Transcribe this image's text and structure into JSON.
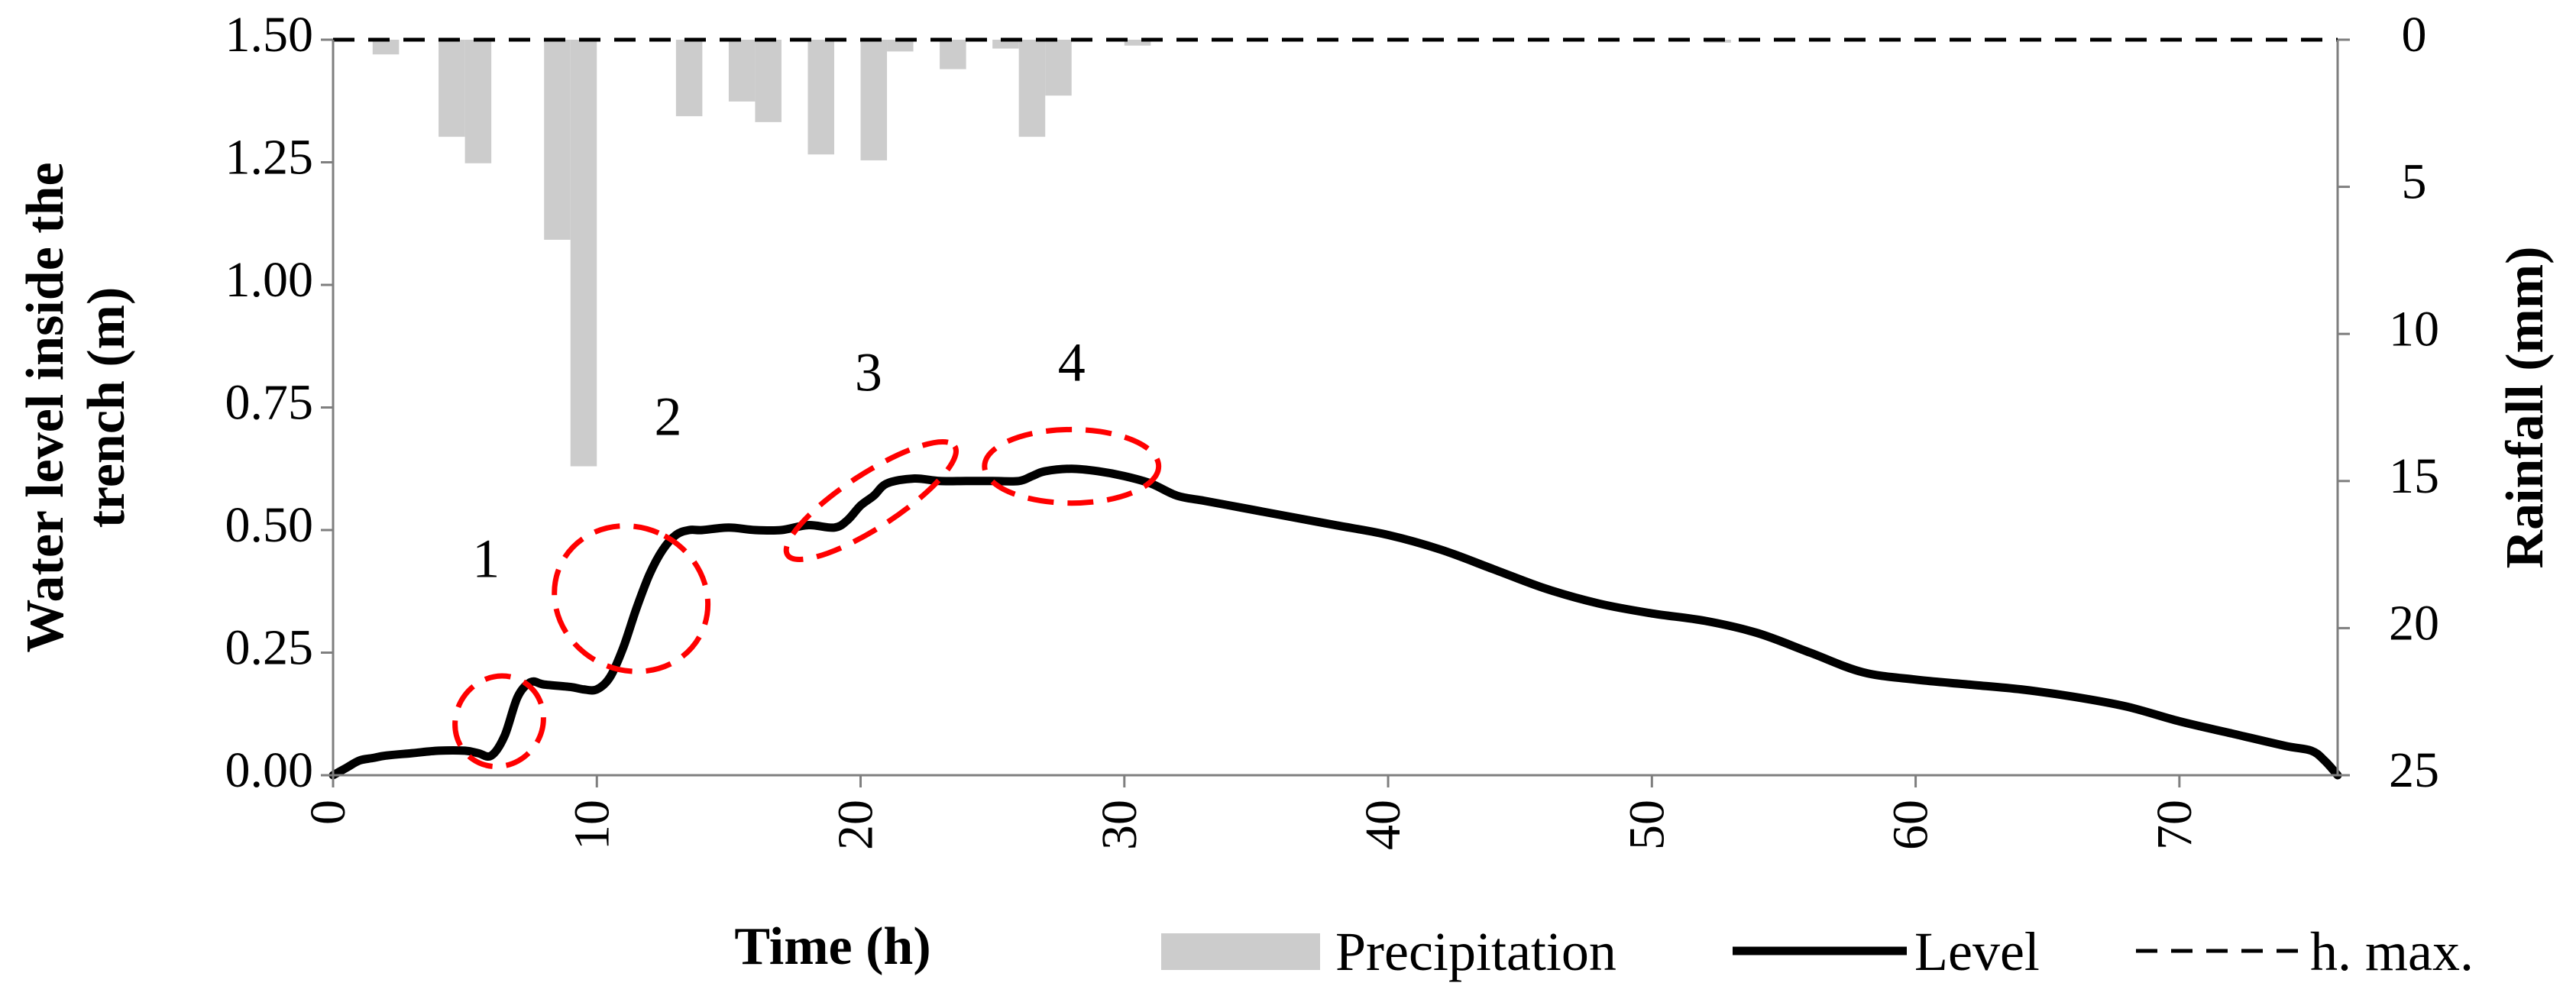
{
  "chart_data": {
    "type": "line",
    "xlabel": "Time (h)",
    "ylabel": "Water level inside the trench (m)",
    "y2label": "Rainfall (mm)",
    "xlim": [
      0,
      76
    ],
    "ylim": [
      0,
      1.5
    ],
    "y2lim": [
      0,
      25
    ],
    "y2_inverted": true,
    "x_ticks": [
      "0",
      "10",
      "20",
      "30",
      "40",
      "50",
      "60",
      "70"
    ],
    "y_ticks": [
      "0.00",
      "0.25",
      "0.50",
      "0.75",
      "1.00",
      "1.25",
      "1.50"
    ],
    "y2_ticks": [
      "0",
      "5",
      "10",
      "15",
      "20",
      "25"
    ],
    "grid": false,
    "legend_position": "bottom",
    "legend": {
      "precipitation": "Precipitation",
      "level": "Level",
      "hmax": "h. max."
    },
    "colors": {
      "precipitation": "#cccccc",
      "level": "#000000",
      "hmax": "#000000",
      "annotation": "#ff0000"
    },
    "series": [
      {
        "name": "Precipitation",
        "type": "bar",
        "axis": "right",
        "bars": [
          {
            "x": 2,
            "value": 0.5
          },
          {
            "x": 4.5,
            "value": 3.3
          },
          {
            "x": 5.5,
            "value": 4.2
          },
          {
            "x": 8.5,
            "value": 6.8
          },
          {
            "x": 9.5,
            "value": 14.5
          },
          {
            "x": 13.5,
            "value": 2.6
          },
          {
            "x": 15.5,
            "value": 2.1
          },
          {
            "x": 16.5,
            "value": 2.8
          },
          {
            "x": 18.5,
            "value": 3.9
          },
          {
            "x": 20.5,
            "value": 4.1
          },
          {
            "x": 21.5,
            "value": 0.4
          },
          {
            "x": 23.5,
            "value": 1.0
          },
          {
            "x": 25.5,
            "value": 0.3
          },
          {
            "x": 26.5,
            "value": 3.3
          },
          {
            "x": 27.5,
            "value": 1.9
          },
          {
            "x": 30.5,
            "value": 0.2
          },
          {
            "x": 52.5,
            "value": 0.1
          }
        ]
      },
      {
        "name": "Level",
        "type": "line",
        "axis": "left",
        "x": [
          0,
          0.5,
          1,
          1.5,
          2,
          3,
          4,
          5,
          5.5,
          6,
          6.5,
          7,
          7.5,
          8,
          9,
          9.5,
          10,
          10.5,
          11,
          11.5,
          12,
          12.5,
          13,
          13.5,
          14,
          15,
          16,
          17,
          18,
          19,
          19.5,
          20,
          20.5,
          21,
          22,
          23,
          24,
          25,
          26,
          26.5,
          27,
          28,
          29,
          30,
          31,
          32,
          33,
          34,
          35,
          36,
          38,
          40,
          42,
          44,
          46,
          48,
          50,
          52,
          54,
          56,
          58,
          60,
          62,
          64,
          66,
          68,
          70,
          72,
          74,
          75,
          75.5,
          76
        ],
        "values": [
          0.0,
          0.015,
          0.03,
          0.035,
          0.04,
          0.045,
          0.05,
          0.05,
          0.045,
          0.04,
          0.08,
          0.16,
          0.19,
          0.185,
          0.18,
          0.175,
          0.175,
          0.2,
          0.26,
          0.34,
          0.41,
          0.46,
          0.49,
          0.5,
          0.5,
          0.505,
          0.5,
          0.5,
          0.51,
          0.505,
          0.52,
          0.55,
          0.57,
          0.595,
          0.605,
          0.6,
          0.6,
          0.6,
          0.6,
          0.61,
          0.62,
          0.625,
          0.62,
          0.61,
          0.595,
          0.57,
          0.56,
          0.55,
          0.54,
          0.53,
          0.51,
          0.49,
          0.46,
          0.42,
          0.38,
          0.35,
          0.33,
          0.315,
          0.29,
          0.25,
          0.21,
          0.195,
          0.185,
          0.175,
          0.16,
          0.14,
          0.11,
          0.085,
          0.06,
          0.05,
          0.03,
          0.0
        ]
      },
      {
        "name": "h. max.",
        "type": "line",
        "axis": "left",
        "style": "dashed",
        "x": [
          0,
          76
        ],
        "values": [
          1.5,
          1.5
        ]
      }
    ],
    "annotations": [
      {
        "text": "1",
        "x": 5.8,
        "y": 0.43,
        "ellipse_cx": 6.3,
        "ellipse_cy": 0.11,
        "ellipse_rx": 1.3,
        "ellipse_ry": 0.16,
        "ellipse_angle": -55
      },
      {
        "text": "2",
        "x": 12.7,
        "y": 0.72,
        "ellipse_cx": 11.3,
        "ellipse_cy": 0.36,
        "ellipse_rx": 2.0,
        "ellipse_ry": 0.29,
        "ellipse_angle": -62
      },
      {
        "text": "3",
        "x": 20.3,
        "y": 0.81,
        "ellipse_cx": 20.4,
        "ellipse_cy": 0.56,
        "ellipse_rx": 2.8,
        "ellipse_ry": 0.1,
        "ellipse_angle": -33
      },
      {
        "text": "4",
        "x": 28.0,
        "y": 0.83,
        "ellipse_cx": 28.0,
        "ellipse_cy": 0.63,
        "ellipse_rx": 3.3,
        "ellipse_ry": 0.075,
        "ellipse_angle": 0
      }
    ]
  }
}
